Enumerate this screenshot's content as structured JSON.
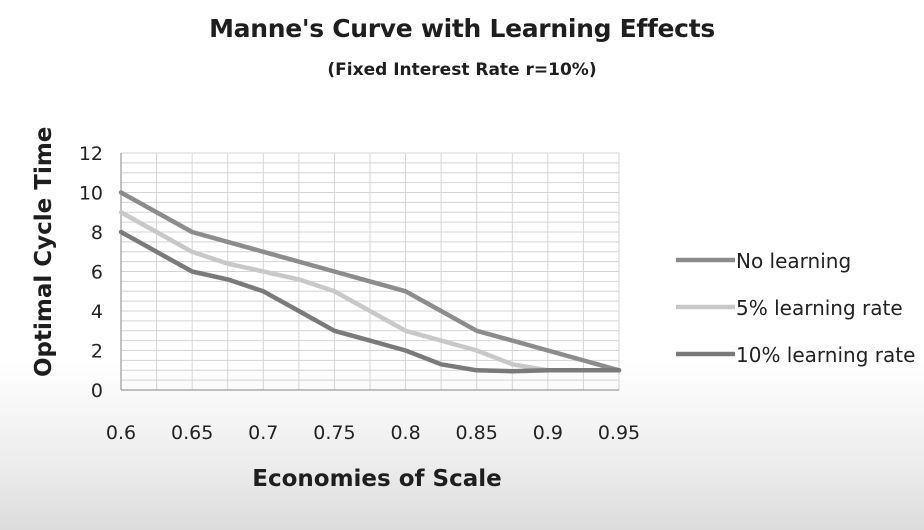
{
  "chart_data": {
    "type": "line",
    "title": "Manne's Curve with Learning Effects",
    "subtitle": "(Fixed Interest Rate r=10%)",
    "xlabel": "Economies of Scale",
    "ylabel": "Optimal Cycle Time",
    "x_ticks": [
      "0.6",
      "0.65",
      "0.7",
      "0.75",
      "0.8",
      "0.85",
      "0.9",
      "0.95"
    ],
    "y_ticks": [
      "0",
      "2",
      "4",
      "6",
      "8",
      "10",
      "12"
    ],
    "xlim": [
      0.6,
      0.95
    ],
    "ylim": [
      0,
      12
    ],
    "grid": true,
    "legend_position": "right",
    "series": [
      {
        "name": "No learning",
        "color": "#8c8c8c",
        "points": [
          [
            0.6,
            10
          ],
          [
            0.65,
            8
          ],
          [
            0.7,
            7
          ],
          [
            0.75,
            6
          ],
          [
            0.775,
            5.5
          ],
          [
            0.8,
            5
          ],
          [
            0.825,
            4
          ],
          [
            0.85,
            3
          ],
          [
            0.875,
            2.5
          ],
          [
            0.9,
            2
          ],
          [
            0.95,
            1
          ]
        ]
      },
      {
        "name": "5% learning rate",
        "color": "#c8c8c8",
        "points": [
          [
            0.6,
            9
          ],
          [
            0.65,
            7
          ],
          [
            0.675,
            6.4
          ],
          [
            0.7,
            6
          ],
          [
            0.725,
            5.6
          ],
          [
            0.75,
            5
          ],
          [
            0.775,
            4
          ],
          [
            0.8,
            3
          ],
          [
            0.825,
            2.5
          ],
          [
            0.85,
            2
          ],
          [
            0.875,
            1.3
          ],
          [
            0.9,
            1
          ],
          [
            0.95,
            1
          ]
        ]
      },
      {
        "name": "10% learning rate",
        "color": "#7a7a7a",
        "points": [
          [
            0.6,
            8
          ],
          [
            0.65,
            6
          ],
          [
            0.675,
            5.6
          ],
          [
            0.7,
            5
          ],
          [
            0.725,
            4
          ],
          [
            0.75,
            3
          ],
          [
            0.775,
            2.5
          ],
          [
            0.8,
            2
          ],
          [
            0.825,
            1.3
          ],
          [
            0.85,
            1
          ],
          [
            0.875,
            0.95
          ],
          [
            0.9,
            1
          ],
          [
            0.95,
            1
          ]
        ]
      }
    ]
  }
}
